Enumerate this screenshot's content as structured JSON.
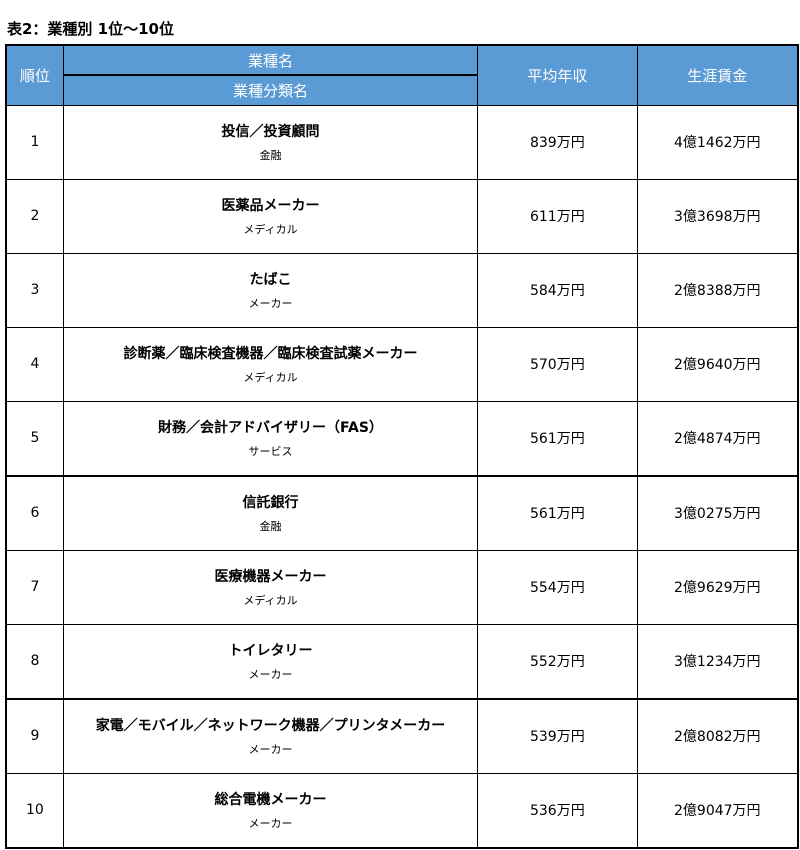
{
  "title": "表2：業種別 1位～10位",
  "header": {
    "rank": "順位",
    "industry": "業種名",
    "category": "業種分類名",
    "salary": "平均年収",
    "lifetime": "生涯賃金",
    "color": "#5b9bd5"
  },
  "rows": [
    {
      "rank": "1",
      "industry": "投信／投資顧問",
      "category": "金融",
      "salary": "839万円",
      "lifetime": "4億1462万円"
    },
    {
      "rank": "2",
      "industry": "医薬品メーカー",
      "category": "メディカル",
      "salary": "611万円",
      "lifetime": "3億3698万円"
    },
    {
      "rank": "3",
      "industry": "たばこ",
      "category": "メーカー",
      "salary": "584万円",
      "lifetime": "2億8388万円"
    },
    {
      "rank": "4",
      "industry": "診断薬／臨床検査機器／臨床検査試薬メーカー",
      "category": "メディカル",
      "salary": "570万円",
      "lifetime": "2億9640万円"
    },
    {
      "rank": "5",
      "industry": "財務／会計アドバイザリー（FAS）",
      "category": "サービス",
      "salary": "561万円",
      "lifetime": "2億4874万円"
    },
    {
      "rank": "6",
      "industry": "信託銀行",
      "category": "金融",
      "salary": "561万円",
      "lifetime": "3億0275万円"
    },
    {
      "rank": "7",
      "industry": "医療機器メーカー",
      "category": "メディカル",
      "salary": "554万円",
      "lifetime": "2億9629万円"
    },
    {
      "rank": "8",
      "industry": "トイレタリー",
      "category": "メーカー",
      "salary": "552万円",
      "lifetime": "3億1234万円"
    },
    {
      "rank": "9",
      "industry": "家電／モバイル／ネットワーク機器／プリンタメーカー",
      "category": "メーカー",
      "salary": "539万円",
      "lifetime": "2億8082万円"
    },
    {
      "rank": "10",
      "industry": "総合電機メーカー",
      "category": "メーカー",
      "salary": "536万円",
      "lifetime": "2億9047万円"
    }
  ]
}
